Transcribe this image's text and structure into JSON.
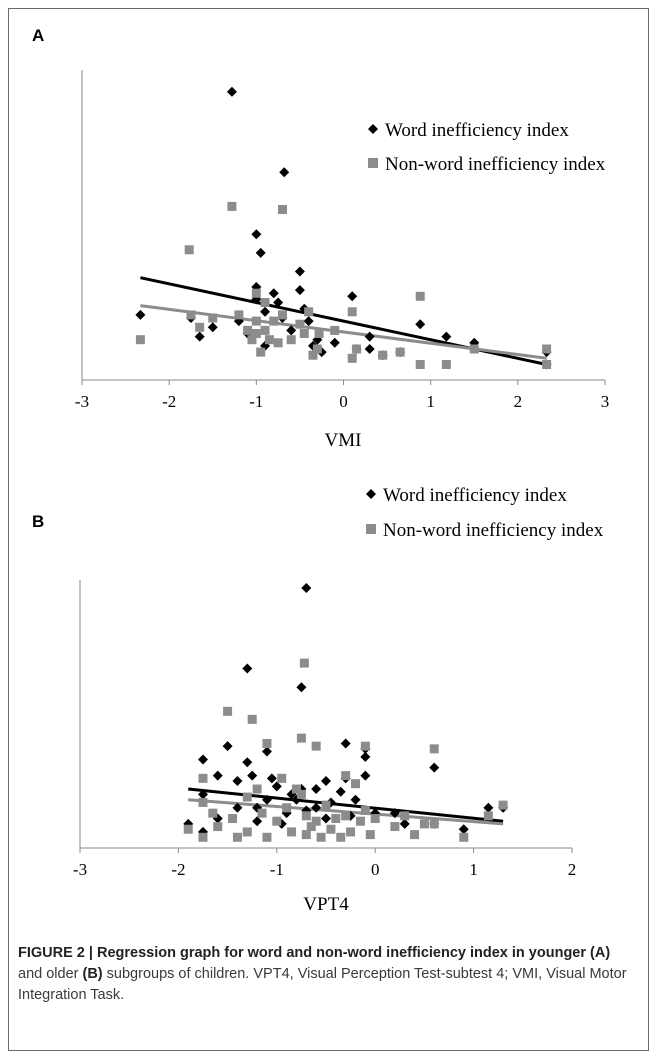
{
  "panels": [
    {
      "letter": "A",
      "xlabel": "VMI",
      "legend": [
        "Word inefficiency index",
        "Non-word inefficiency index"
      ]
    },
    {
      "letter": "B",
      "xlabel": "VPT4",
      "legend": [
        "Word inefficiency index",
        "Non-word inefficiency index"
      ]
    }
  ],
  "caption": {
    "p1": "FIGURE 2 | Regression graph for word and non-word inefficiency index in younger ",
    "p2": "(A)",
    "p3": " and older ",
    "p4": "(B)",
    "p5": " subgroups of children.",
    "p6": " VPT4, Visual Perception Test-subtest 4; VMI, Visual Motor Integration Task."
  },
  "colors": {
    "word": "#000000",
    "nonword": "#8c8c8c"
  },
  "chart_data": [
    {
      "type": "scatter",
      "title": "",
      "xlabel": "VMI",
      "ylabel": "",
      "xlim": [
        -3,
        3
      ],
      "xticks": [
        -3,
        -2,
        -1,
        0,
        1,
        2,
        3
      ],
      "ylim": [
        0,
        10
      ],
      "series": [
        {
          "name": "Word inefficiency index",
          "marker": "diamond",
          "points": [
            [
              -2.33,
              2.1
            ],
            [
              -1.75,
              2.0
            ],
            [
              -1.65,
              1.4
            ],
            [
              -1.5,
              1.7
            ],
            [
              -1.28,
              9.3
            ],
            [
              -1.2,
              1.9
            ],
            [
              -1.1,
              1.5
            ],
            [
              -1.0,
              4.7
            ],
            [
              -1.0,
              3.0
            ],
            [
              -1.0,
              2.6
            ],
            [
              -0.95,
              4.1
            ],
            [
              -0.9,
              2.2
            ],
            [
              -0.9,
              1.1
            ],
            [
              -0.8,
              2.8
            ],
            [
              -0.75,
              2.5
            ],
            [
              -0.7,
              2.0
            ],
            [
              -0.68,
              6.7
            ],
            [
              -0.6,
              1.6
            ],
            [
              -0.5,
              3.5
            ],
            [
              -0.5,
              2.9
            ],
            [
              -0.45,
              2.3
            ],
            [
              -0.4,
              1.9
            ],
            [
              -0.35,
              1.1
            ],
            [
              -0.3,
              1.3
            ],
            [
              -0.25,
              0.9
            ],
            [
              -0.1,
              1.2
            ],
            [
              0.1,
              2.7
            ],
            [
              0.15,
              1.0
            ],
            [
              0.3,
              1.4
            ],
            [
              0.3,
              1.0
            ],
            [
              0.45,
              0.8
            ],
            [
              0.65,
              0.9
            ],
            [
              0.88,
              1.8
            ],
            [
              1.18,
              1.4
            ],
            [
              1.5,
              1.2
            ],
            [
              2.33,
              0.5
            ],
            [
              2.33,
              0.9
            ]
          ]
        },
        {
          "name": "Non-word inefficiency index",
          "marker": "square",
          "points": [
            [
              -2.33,
              1.3
            ],
            [
              -1.77,
              4.2
            ],
            [
              -1.75,
              2.1
            ],
            [
              -1.65,
              1.7
            ],
            [
              -1.5,
              2.0
            ],
            [
              -1.28,
              5.6
            ],
            [
              -1.2,
              2.1
            ],
            [
              -1.1,
              1.6
            ],
            [
              -1.05,
              1.3
            ],
            [
              -1.0,
              2.8
            ],
            [
              -1.0,
              1.9
            ],
            [
              -1.0,
              1.5
            ],
            [
              -0.95,
              0.9
            ],
            [
              -0.9,
              2.5
            ],
            [
              -0.9,
              1.6
            ],
            [
              -0.85,
              1.3
            ],
            [
              -0.8,
              1.9
            ],
            [
              -0.75,
              1.2
            ],
            [
              -0.7,
              5.5
            ],
            [
              -0.7,
              2.1
            ],
            [
              -0.6,
              1.3
            ],
            [
              -0.5,
              1.8
            ],
            [
              -0.45,
              1.5
            ],
            [
              -0.4,
              2.2
            ],
            [
              -0.35,
              0.8
            ],
            [
              -0.3,
              1.0
            ],
            [
              -0.28,
              1.5
            ],
            [
              -0.1,
              1.6
            ],
            [
              0.1,
              2.2
            ],
            [
              0.1,
              0.7
            ],
            [
              0.15,
              1.0
            ],
            [
              0.45,
              0.8
            ],
            [
              0.65,
              0.9
            ],
            [
              0.88,
              2.7
            ],
            [
              0.88,
              0.5
            ],
            [
              1.18,
              0.5
            ],
            [
              1.5,
              1.0
            ],
            [
              2.33,
              0.5
            ],
            [
              2.33,
              1.0
            ]
          ]
        }
      ],
      "fits": [
        {
          "name": "Word inefficiency index",
          "x": [
            -2.33,
            2.33
          ],
          "y": [
            3.3,
            0.5
          ]
        },
        {
          "name": "Non-word inefficiency index",
          "x": [
            -2.33,
            2.33
          ],
          "y": [
            2.4,
            0.7
          ]
        }
      ],
      "legend_position": "top-right"
    },
    {
      "type": "scatter",
      "title": "",
      "xlabel": "VPT4",
      "ylabel": "",
      "xlim": [
        -3,
        2
      ],
      "xticks": [
        -3,
        -2,
        -1,
        0,
        1,
        2
      ],
      "ylim": [
        0,
        10
      ],
      "series": [
        {
          "name": "Word inefficiency index",
          "marker": "diamond",
          "points": [
            [
              -1.9,
              0.9
            ],
            [
              -1.75,
              3.3
            ],
            [
              -1.75,
              0.6
            ],
            [
              -1.75,
              2.0
            ],
            [
              -1.6,
              2.7
            ],
            [
              -1.6,
              1.1
            ],
            [
              -1.5,
              3.8
            ],
            [
              -1.4,
              2.5
            ],
            [
              -1.4,
              1.5
            ],
            [
              -1.3,
              6.7
            ],
            [
              -1.3,
              3.2
            ],
            [
              -1.25,
              2.7
            ],
            [
              -1.2,
              1.5
            ],
            [
              -1.2,
              1.0
            ],
            [
              -1.1,
              3.6
            ],
            [
              -1.1,
              1.8
            ],
            [
              -1.05,
              2.6
            ],
            [
              -1.0,
              2.3
            ],
            [
              -0.95,
              0.9
            ],
            [
              -0.9,
              1.3
            ],
            [
              -0.85,
              2.0
            ],
            [
              -0.8,
              1.8
            ],
            [
              -0.75,
              6.0
            ],
            [
              -0.75,
              2.2
            ],
            [
              -0.7,
              9.7
            ],
            [
              -0.7,
              1.4
            ],
            [
              -0.6,
              1.5
            ],
            [
              -0.6,
              2.2
            ],
            [
              -0.5,
              1.1
            ],
            [
              -0.5,
              2.5
            ],
            [
              -0.45,
              1.7
            ],
            [
              -0.35,
              2.1
            ],
            [
              -0.3,
              3.9
            ],
            [
              -0.3,
              2.6
            ],
            [
              -0.25,
              1.2
            ],
            [
              -0.2,
              1.8
            ],
            [
              -0.1,
              2.7
            ],
            [
              -0.1,
              3.4
            ],
            [
              -0.1,
              3.7
            ],
            [
              0.0,
              1.3
            ],
            [
              0.2,
              1.3
            ],
            [
              0.3,
              0.9
            ],
            [
              0.6,
              3.0
            ],
            [
              0.6,
              0.9
            ],
            [
              0.9,
              0.7
            ],
            [
              1.15,
              1.5
            ],
            [
              1.3,
              1.5
            ]
          ]
        },
        {
          "name": "Non-word inefficiency index",
          "marker": "square",
          "points": [
            [
              -1.9,
              0.7
            ],
            [
              -1.75,
              2.6
            ],
            [
              -1.75,
              1.7
            ],
            [
              -1.75,
              0.4
            ],
            [
              -1.65,
              1.3
            ],
            [
              -1.6,
              0.8
            ],
            [
              -1.5,
              5.1
            ],
            [
              -1.45,
              1.1
            ],
            [
              -1.4,
              0.4
            ],
            [
              -1.3,
              1.9
            ],
            [
              -1.3,
              0.6
            ],
            [
              -1.25,
              4.8
            ],
            [
              -1.2,
              2.2
            ],
            [
              -1.15,
              1.3
            ],
            [
              -1.1,
              3.9
            ],
            [
              -1.1,
              0.4
            ],
            [
              -1.0,
              1.0
            ],
            [
              -0.95,
              2.6
            ],
            [
              -0.9,
              1.5
            ],
            [
              -0.85,
              0.6
            ],
            [
              -0.8,
              2.2
            ],
            [
              -0.75,
              4.1
            ],
            [
              -0.75,
              2.0
            ],
            [
              -0.72,
              6.9
            ],
            [
              -0.7,
              1.2
            ],
            [
              -0.7,
              0.5
            ],
            [
              -0.65,
              0.8
            ],
            [
              -0.6,
              3.8
            ],
            [
              -0.6,
              1.0
            ],
            [
              -0.55,
              0.4
            ],
            [
              -0.5,
              1.6
            ],
            [
              -0.45,
              0.7
            ],
            [
              -0.4,
              1.1
            ],
            [
              -0.35,
              0.4
            ],
            [
              -0.3,
              2.7
            ],
            [
              -0.3,
              1.2
            ],
            [
              -0.25,
              0.6
            ],
            [
              -0.2,
              2.4
            ],
            [
              -0.15,
              1.0
            ],
            [
              -0.1,
              3.8
            ],
            [
              -0.1,
              1.4
            ],
            [
              -0.05,
              0.5
            ],
            [
              0.0,
              1.1
            ],
            [
              0.2,
              0.8
            ],
            [
              0.3,
              1.2
            ],
            [
              0.4,
              0.5
            ],
            [
              0.5,
              0.9
            ],
            [
              0.6,
              3.7
            ],
            [
              0.6,
              0.9
            ],
            [
              0.9,
              0.4
            ],
            [
              1.15,
              1.2
            ],
            [
              1.3,
              1.6
            ]
          ]
        }
      ],
      "fits": [
        {
          "name": "Word inefficiency index",
          "x": [
            -1.9,
            1.3
          ],
          "y": [
            2.2,
            1.0
          ]
        },
        {
          "name": "Non-word inefficiency index",
          "x": [
            -1.9,
            1.3
          ],
          "y": [
            1.8,
            0.9
          ]
        }
      ],
      "legend_position": "top-right"
    }
  ]
}
